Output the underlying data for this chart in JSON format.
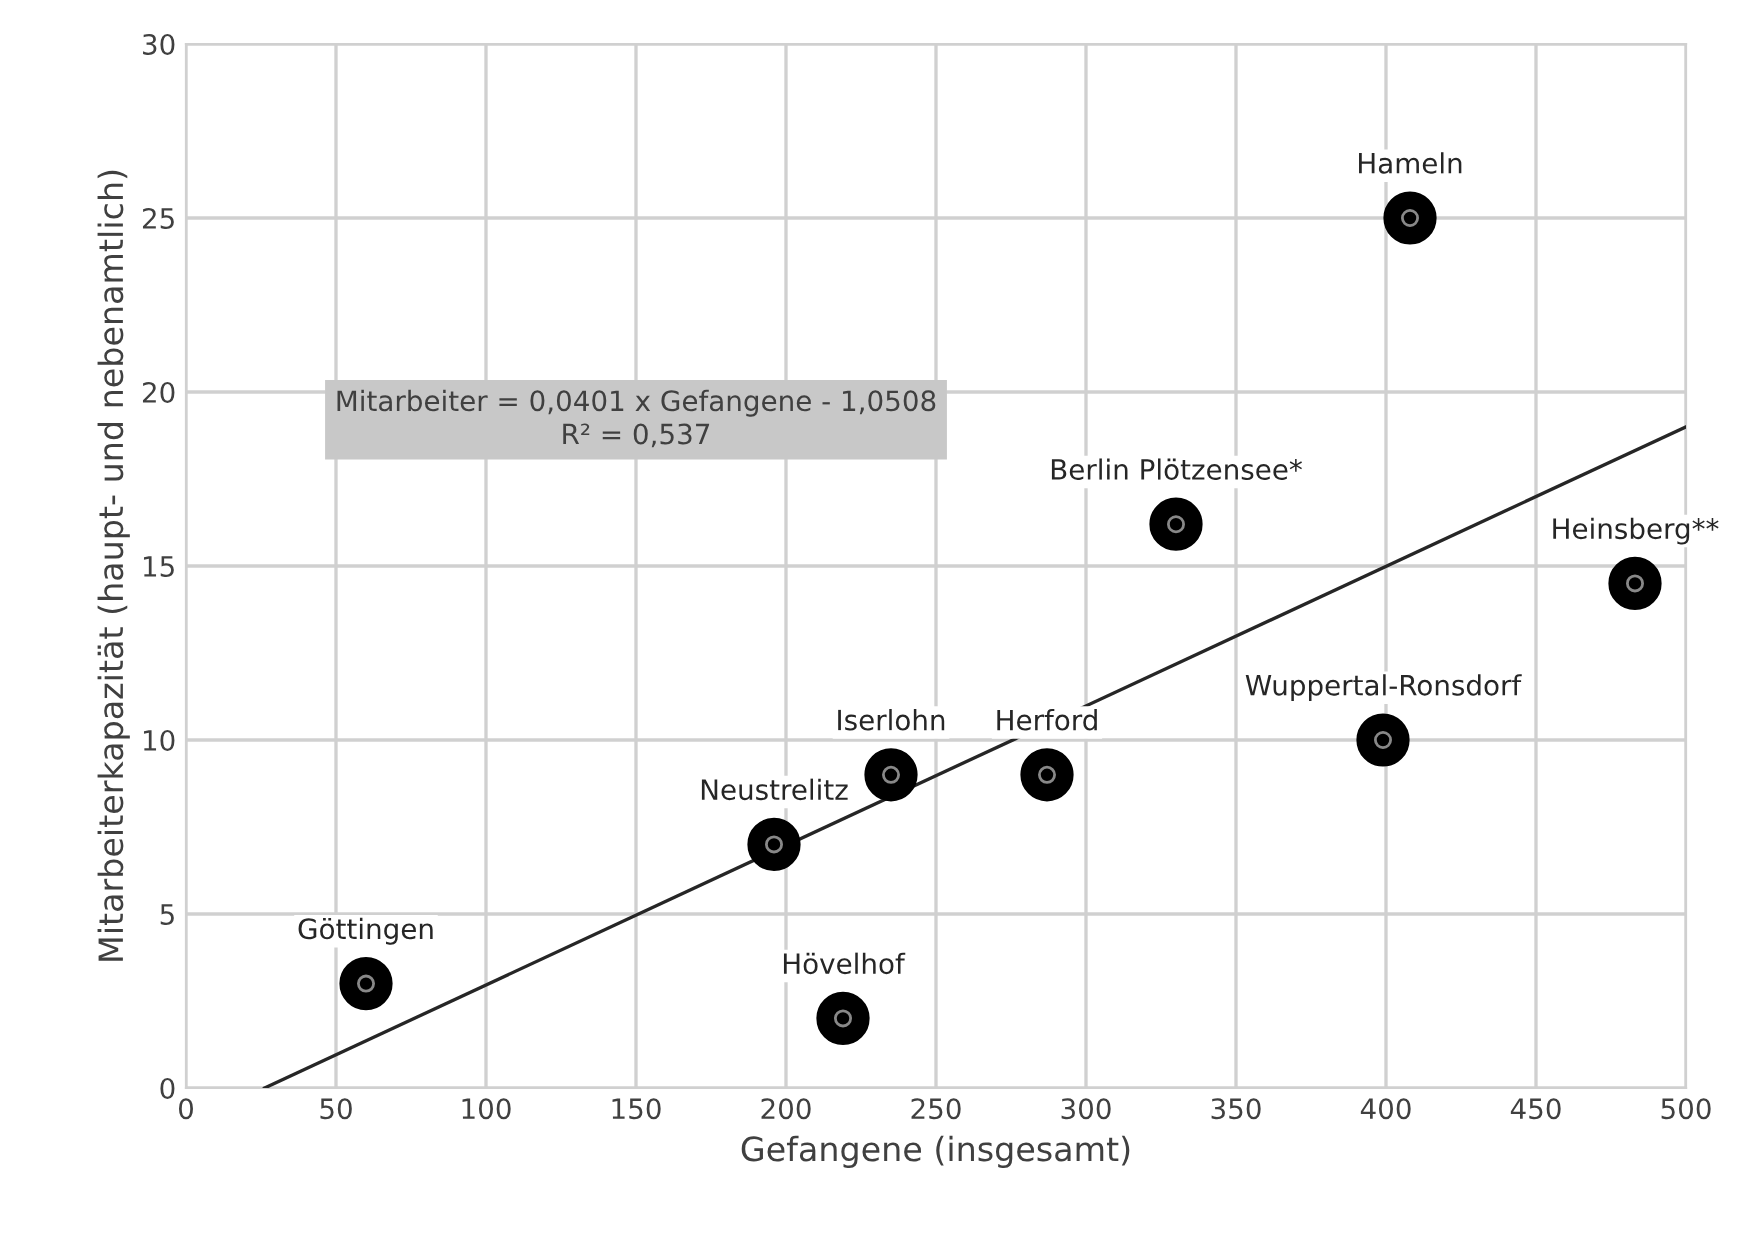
{
  "chart_data": {
    "type": "scatter",
    "xlabel": "Gefangene (insgesamt)",
    "ylabel": "Mitarbeiterkapazität (haupt- und nebenamtlich)",
    "series": [
      {
        "color": "#000000",
        "marker": "circle",
        "x": [
          60,
          196,
          219,
          235,
          287,
          330,
          408,
          399,
          483
        ],
        "values": [
          3,
          7,
          2,
          9,
          9,
          16.2,
          25,
          10,
          14.5
        ]
      },
      {
        "type": "line",
        "color": "#262626",
        "x": [
          26.2,
          500
        ],
        "values": [
          0,
          19
        ]
      }
    ],
    "annotations": [
      {
        "text": "Göttingen",
        "x": 60,
        "y": 3
      },
      {
        "text": "Neustrelitz",
        "x": 196,
        "y": 7
      },
      {
        "text": "Hövelhof",
        "x": 219,
        "y": 2
      },
      {
        "text": "Iserlohn",
        "x": 235,
        "y": 9
      },
      {
        "text": "Herford",
        "x": 287,
        "y": 9
      },
      {
        "text": "Berlin Plötzensee*",
        "x": 330,
        "y": 16.2
      },
      {
        "text": "Hameln",
        "x": 408,
        "y": 25
      },
      {
        "text": "Wuppertal-Ronsdorf",
        "x": 399,
        "y": 10
      },
      {
        "text": "Heinsberg**",
        "x": 483,
        "y": 14.5
      },
      "Mitarbeiter = 0,0401 x Gefangene - 1,0508\nR² = 0,537"
    ],
    "xlim": [
      0,
      500
    ],
    "ylim": [
      0,
      30
    ],
    "xticks": [
      0,
      50,
      100,
      150,
      200,
      250,
      300,
      350,
      400,
      450,
      500
    ],
    "yticks": [
      0,
      5,
      10,
      15,
      20,
      25,
      30
    ],
    "grid": true,
    "line_style": "solid",
    "legend": false
  }
}
